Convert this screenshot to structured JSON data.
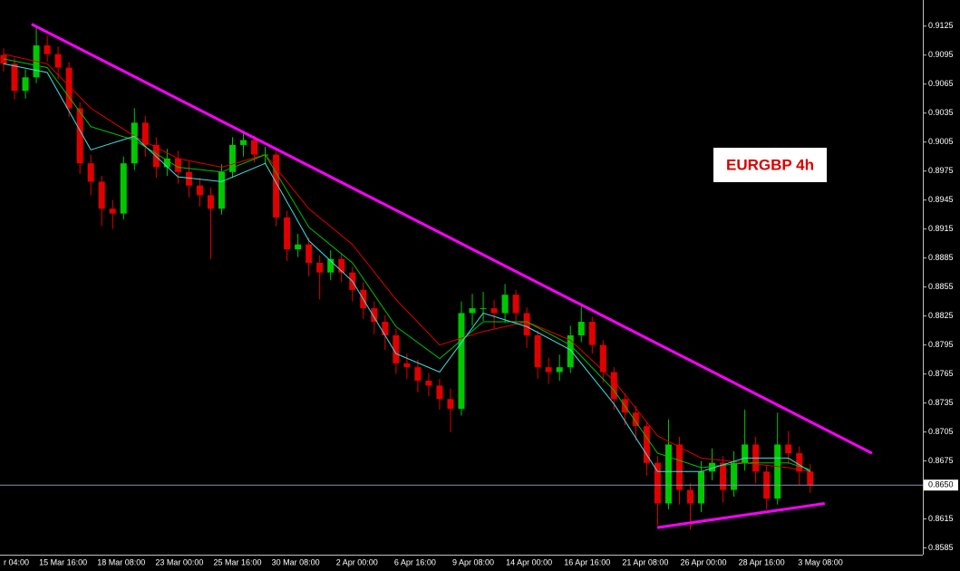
{
  "chart_data": {
    "type": "candlestick",
    "title": "EURGBP 4h",
    "title_color": "#d80000",
    "background": "#000000",
    "up_color": "#00c800",
    "down_color": "#e00000",
    "x": [
      -3,
      0,
      3,
      6,
      9,
      12,
      15,
      18,
      21,
      24,
      27,
      30,
      33,
      36,
      39,
      42,
      45,
      48,
      51,
      54,
      57,
      60,
      63,
      66,
      69,
      72,
      75,
      78,
      81,
      84,
      87,
      90,
      93,
      96,
      99,
      102,
      105,
      108,
      111,
      114,
      117,
      120,
      123,
      126,
      129,
      132,
      135,
      138,
      141,
      144,
      147,
      150,
      153,
      156,
      159,
      162,
      165,
      168,
      171,
      174,
      177,
      180,
      183,
      186,
      189,
      192,
      195,
      198,
      201,
      204,
      207,
      210,
      213,
      216,
      219
    ],
    "open": [
      0.9095,
      0.9086,
      0.9058,
      0.9072,
      0.9105,
      0.9096,
      0.9082,
      0.904,
      0.8983,
      0.8964,
      0.8936,
      0.8931,
      0.8983,
      0.9025,
      0.9002,
      0.8979,
      0.8988,
      0.8974,
      0.896,
      0.895,
      0.8936,
      0.8974,
      0.9002,
      0.9007,
      0.8992,
      0.8992,
      0.8927,
      0.8894,
      0.8899,
      0.888,
      0.887,
      0.8884,
      0.887,
      0.8852,
      0.8833,
      0.8819,
      0.8805,
      0.8776,
      0.8772,
      0.8758,
      0.8753,
      0.8739,
      0.8729,
      0.8828,
      0.8833,
      0.8833,
      0.8828,
      0.8847,
      0.8828,
      0.8805,
      0.8772,
      0.8767,
      0.8772,
      0.8805,
      0.8819,
      0.8795,
      0.8767,
      0.8739,
      0.8725,
      0.8711,
      0.8673,
      0.8631,
      0.8692,
      0.8645,
      0.8631,
      0.8664,
      0.8673,
      0.8645,
      0.8673,
      0.8692,
      0.8664,
      0.8636,
      0.8692,
      0.8683,
      0.8664
    ],
    "high": [
      0.9102,
      0.9092,
      0.908,
      0.9124,
      0.9115,
      0.9104,
      0.9088,
      0.9046,
      0.8992,
      0.897,
      0.8945,
      0.899,
      0.904,
      0.9032,
      0.901,
      0.8998,
      0.8996,
      0.8985,
      0.8968,
      0.8958,
      0.8982,
      0.901,
      0.9015,
      0.9012,
      0.9,
      0.8998,
      0.8934,
      0.891,
      0.8906,
      0.8888,
      0.8893,
      0.889,
      0.8876,
      0.886,
      0.884,
      0.8826,
      0.8812,
      0.8786,
      0.878,
      0.8766,
      0.876,
      0.875,
      0.884,
      0.8848,
      0.885,
      0.8842,
      0.8858,
      0.8852,
      0.8834,
      0.881,
      0.8782,
      0.8785,
      0.8815,
      0.8838,
      0.8824,
      0.88,
      0.8772,
      0.8745,
      0.8732,
      0.8716,
      0.868,
      0.8718,
      0.87,
      0.8652,
      0.8675,
      0.8688,
      0.868,
      0.8685,
      0.8728,
      0.87,
      0.867,
      0.8725,
      0.8706,
      0.869,
      0.8672
    ],
    "low": [
      0.9078,
      0.9049,
      0.905,
      0.9066,
      0.9088,
      0.907,
      0.9031,
      0.8972,
      0.895,
      0.8918,
      0.8915,
      0.8925,
      0.8976,
      0.899,
      0.8968,
      0.897,
      0.8962,
      0.8948,
      0.8938,
      0.8884,
      0.893,
      0.8968,
      0.899,
      0.8984,
      0.8982,
      0.8918,
      0.8882,
      0.8886,
      0.8866,
      0.8842,
      0.8862,
      0.886,
      0.884,
      0.8822,
      0.8806,
      0.879,
      0.8765,
      0.876,
      0.8746,
      0.8742,
      0.8728,
      0.8705,
      0.8722,
      0.8815,
      0.882,
      0.8812,
      0.8818,
      0.8818,
      0.8792,
      0.876,
      0.8755,
      0.8758,
      0.8766,
      0.8798,
      0.8786,
      0.8756,
      0.8728,
      0.8712,
      0.8696,
      0.866,
      0.8608,
      0.8625,
      0.863,
      0.8604,
      0.8622,
      0.8655,
      0.8632,
      0.8638,
      0.8665,
      0.8652,
      0.8625,
      0.863,
      0.8672,
      0.865,
      0.8642
    ],
    "close": [
      0.9086,
      0.9058,
      0.9072,
      0.9105,
      0.9096,
      0.9082,
      0.904,
      0.8983,
      0.8964,
      0.8936,
      0.8931,
      0.8983,
      0.9025,
      0.9002,
      0.8979,
      0.8988,
      0.8974,
      0.896,
      0.895,
      0.8936,
      0.8974,
      0.9002,
      0.9007,
      0.8992,
      0.8992,
      0.8927,
      0.8894,
      0.8899,
      0.888,
      0.887,
      0.8884,
      0.887,
      0.8852,
      0.8833,
      0.8819,
      0.8805,
      0.8776,
      0.8772,
      0.8758,
      0.8753,
      0.8739,
      0.8729,
      0.8828,
      0.8833,
      0.8833,
      0.8828,
      0.8847,
      0.8828,
      0.8805,
      0.8772,
      0.8767,
      0.8772,
      0.8805,
      0.8819,
      0.8795,
      0.8767,
      0.8739,
      0.8725,
      0.8711,
      0.8673,
      0.8631,
      0.8692,
      0.8645,
      0.8631,
      0.8664,
      0.8673,
      0.8645,
      0.8673,
      0.8692,
      0.8664,
      0.8636,
      0.8692,
      0.8683,
      0.8664,
      0.865
    ],
    "ma_x": [
      -3,
      9,
      21,
      33,
      45,
      57,
      69,
      81,
      93,
      105,
      117,
      129,
      141,
      153,
      165,
      177,
      189,
      201,
      213,
      219
    ],
    "moving_averages": [
      {
        "color": "#e00000",
        "values": [
          0.9096,
          0.9086,
          0.904,
          0.9011,
          0.8988,
          0.8979,
          0.8992,
          0.8936,
          0.8899,
          0.8842,
          0.8795,
          0.8809,
          0.8819,
          0.88,
          0.8758,
          0.8701,
          0.8678,
          0.8673,
          0.8668,
          0.8664
        ]
      },
      {
        "color": "#00c000",
        "values": [
          0.9091,
          0.9082,
          0.9021,
          0.9007,
          0.8979,
          0.8974,
          0.8992,
          0.8917,
          0.888,
          0.8814,
          0.8781,
          0.8819,
          0.8819,
          0.8795,
          0.8748,
          0.8683,
          0.8668,
          0.8673,
          0.8673,
          0.8666
        ]
      },
      {
        "color": "#40e0e0",
        "values": [
          0.9086,
          0.9077,
          0.8997,
          0.9011,
          0.8969,
          0.8964,
          0.8983,
          0.8903,
          0.8861,
          0.8786,
          0.8767,
          0.8828,
          0.8814,
          0.879,
          0.8734,
          0.8664,
          0.8664,
          0.8678,
          0.8678,
          0.8664
        ]
      }
    ],
    "trendlines": [
      {
        "color": "#ff00ff",
        "x": [
          4.7,
          236
        ],
        "values": [
          0.9127,
          0.8683
        ]
      },
      {
        "color": "#ff00ff",
        "x": [
          176.9,
          223
        ],
        "values": [
          0.8606,
          0.8631
        ]
      }
    ],
    "current_price": {
      "value": 0.865,
      "label": "0.8650"
    },
    "xlim": [
      -4,
      250
    ],
    "ylim": [
      0.8578,
      0.9152
    ],
    "xticks": [
      {
        "value": 4,
        "label": "r 04:00"
      },
      {
        "value": 20,
        "label": "15 Mar 16:00"
      },
      {
        "value": 36,
        "label": "18 Mar 08:00"
      },
      {
        "value": 52,
        "label": "23 Mar 00:00"
      },
      {
        "value": 68,
        "label": "25 Mar 16:00"
      },
      {
        "value": 84,
        "label": "30 Mar 08:00"
      },
      {
        "value": 100,
        "label": "2 Apr 00:00"
      },
      {
        "value": 116,
        "label": "6 Apr 16:00"
      },
      {
        "value": 132,
        "label": "9 Apr 08:00"
      },
      {
        "value": 148,
        "label": "14 Apr 00:00"
      },
      {
        "value": 164,
        "label": "16 Apr 16:00"
      },
      {
        "value": 180,
        "label": "21 Apr 08:00"
      },
      {
        "value": 196,
        "label": "26 Apr 00:00"
      },
      {
        "value": 212,
        "label": "28 Apr 16:00"
      },
      {
        "value": 228,
        "label": "3 May 08:00"
      }
    ],
    "yticks": [
      0.9125,
      0.9095,
      0.9065,
      0.9035,
      0.9005,
      0.8975,
      0.8945,
      0.8915,
      0.8885,
      0.8855,
      0.8825,
      0.8795,
      0.8765,
      0.8735,
      0.8705,
      0.8675,
      0.8615,
      0.8585
    ]
  }
}
